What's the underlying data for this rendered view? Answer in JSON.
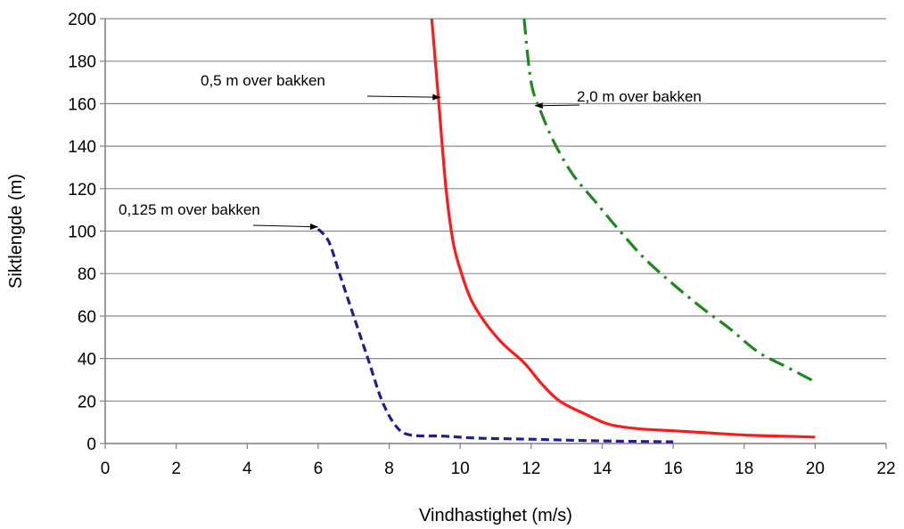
{
  "chart_data": {
    "type": "line",
    "title": "",
    "xlabel": "Vindhastighet (m/s)",
    "ylabel": "Siktlengde (m)",
    "xlim": [
      0,
      22
    ],
    "ylim": [
      0,
      200
    ],
    "x_ticks": [
      0,
      2,
      4,
      6,
      8,
      10,
      12,
      14,
      16,
      18,
      20,
      22
    ],
    "y_ticks": [
      0,
      20,
      40,
      60,
      80,
      100,
      120,
      140,
      160,
      180,
      200
    ],
    "grid": "horizontal",
    "legend": "none",
    "series": [
      {
        "name": "0,125 m over bakken",
        "color": "#1f1f8f",
        "style": "dashed",
        "points": [
          [
            6.0,
            101
          ],
          [
            6.3,
            95
          ],
          [
            6.6,
            80
          ],
          [
            7.0,
            60
          ],
          [
            7.4,
            40
          ],
          [
            7.8,
            20
          ],
          [
            8.2,
            8
          ],
          [
            8.6,
            4
          ],
          [
            9.5,
            3.5
          ],
          [
            10.5,
            2.5
          ],
          [
            12,
            2
          ],
          [
            14,
            1.2
          ],
          [
            16,
            0.8
          ]
        ]
      },
      {
        "name": "0,5 m over bakken",
        "color": "#ff1a1a",
        "style": "solid",
        "points": [
          [
            9.2,
            200
          ],
          [
            9.4,
            160
          ],
          [
            9.6,
            120
          ],
          [
            9.8,
            95
          ],
          [
            10.0,
            82
          ],
          [
            10.3,
            68
          ],
          [
            10.7,
            57
          ],
          [
            11.2,
            47
          ],
          [
            11.8,
            38
          ],
          [
            12.3,
            28
          ],
          [
            12.8,
            20
          ],
          [
            13.5,
            14
          ],
          [
            14.2,
            9
          ],
          [
            15,
            7
          ],
          [
            16,
            6
          ],
          [
            17,
            5
          ],
          [
            18,
            4
          ],
          [
            19,
            3.5
          ],
          [
            20,
            3
          ]
        ]
      },
      {
        "name": "2,0 m over bakken",
        "color": "#1a8a1a",
        "style": "dashdot",
        "points": [
          [
            11.8,
            200
          ],
          [
            12.0,
            170
          ],
          [
            12.3,
            155
          ],
          [
            12.7,
            140
          ],
          [
            13.2,
            126
          ],
          [
            13.8,
            114
          ],
          [
            14.5,
            100
          ],
          [
            15.2,
            87
          ],
          [
            16.0,
            75
          ],
          [
            16.8,
            64
          ],
          [
            17.6,
            54
          ],
          [
            18.4,
            43
          ],
          [
            19.2,
            36
          ],
          [
            20.0,
            29
          ]
        ]
      }
    ],
    "annotations": [
      {
        "text": "0,5 m over bakken",
        "target": [
          9.45,
          163
        ]
      },
      {
        "text": "2,0 m over bakken",
        "target": [
          12.1,
          159
        ]
      },
      {
        "text": "0,125 m over bakken",
        "target": [
          6.0,
          102
        ]
      }
    ]
  }
}
